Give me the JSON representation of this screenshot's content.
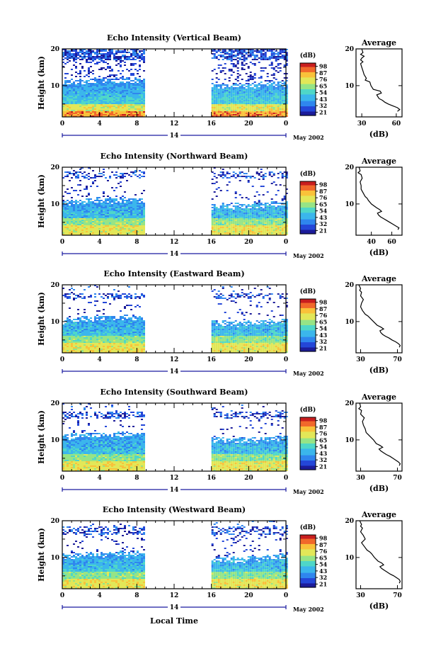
{
  "figure": {
    "xlabel": "Local Time",
    "date_label": "May 2002",
    "day_label": "14"
  },
  "colors": {
    "colormap": [
      "#1c1c9a",
      "#2447d8",
      "#2f86ee",
      "#3bb6ec",
      "#4fd7c8",
      "#96e486",
      "#e2e758",
      "#f9c23a",
      "#f1692b",
      "#c81e1e"
    ],
    "profile_line": "#000000"
  },
  "chart_data": [
    {
      "type": "heatmap",
      "title": "Echo Intensity (Vertical Beam)",
      "ylabel": "Height (km)",
      "x_ticks": [
        "0",
        "4",
        "8",
        "12",
        "16",
        "20",
        "0"
      ],
      "y_ticks": [
        "10",
        "20"
      ],
      "xlim": [
        0,
        24
      ],
      "ylim": [
        1.5,
        20
      ],
      "data_gap_hours": [
        8.7,
        16
      ],
      "colorbar": {
        "label": "(dB)",
        "ticks": [
          "98",
          "87",
          "76",
          "65",
          "54",
          "43",
          "32",
          "21"
        ]
      },
      "upper_layer_km": [
        17,
        20
      ],
      "main_top_km": 11.5,
      "average_profile": {
        "title": "Average",
        "xlabel": "(dB)",
        "x_ticks": [
          "30",
          "60"
        ],
        "xlim": [
          25,
          65
        ],
        "heights": [
          20,
          19,
          18.5,
          18,
          17.5,
          17,
          16.5,
          16,
          15,
          14,
          13,
          12,
          11.5,
          11,
          10,
          9,
          8.5,
          8,
          7.5,
          7,
          6.5,
          6,
          5.5,
          5,
          4.5,
          4,
          3.5,
          3
        ],
        "values": [
          30,
          31,
          29,
          32,
          30,
          29,
          31,
          29,
          30,
          31,
          32,
          34,
          33,
          37,
          38,
          40,
          46,
          47,
          43,
          44,
          45,
          48,
          50,
          53,
          57,
          61,
          63,
          61
        ]
      }
    },
    {
      "type": "heatmap",
      "title": "Echo Intensity (Northward Beam)",
      "ylabel": "Height (km)",
      "x_ticks": [
        "0",
        "4",
        "8",
        "12",
        "16",
        "20",
        "0"
      ],
      "y_ticks": [
        "10",
        "20"
      ],
      "xlim": [
        0,
        24
      ],
      "ylim": [
        1.5,
        20
      ],
      "data_gap_hours": [
        8.7,
        16
      ],
      "colorbar": {
        "label": "(dB)",
        "ticks": [
          "98",
          "87",
          "76",
          "65",
          "54",
          "43",
          "32",
          "21"
        ]
      },
      "upper_layer_km": [
        17,
        19
      ],
      "main_top_km": 11,
      "average_profile": {
        "title": "Average",
        "xlabel": "(dB)",
        "x_ticks": [
          "40",
          "60"
        ],
        "xlim": [
          25,
          70
        ],
        "heights": [
          20,
          19,
          18.5,
          18,
          17,
          16,
          15,
          14,
          13,
          12,
          11.5,
          11,
          10,
          9,
          8.5,
          8,
          7.5,
          7,
          6.5,
          6,
          5.5,
          5,
          4.5,
          4,
          3.5,
          3
        ],
        "values": [
          28,
          29,
          27,
          30,
          31,
          29,
          30,
          30,
          32,
          34,
          36,
          37,
          40,
          45,
          48,
          50,
          46,
          47,
          49,
          52,
          55,
          58,
          61,
          64,
          67,
          66
        ]
      }
    },
    {
      "type": "heatmap",
      "title": "Echo Intensity (Eastward Beam)",
      "ylabel": "Height (km)",
      "x_ticks": [
        "0",
        "4",
        "8",
        "12",
        "16",
        "20",
        "0"
      ],
      "y_ticks": [
        "10",
        "20"
      ],
      "xlim": [
        0,
        24
      ],
      "ylim": [
        1.5,
        20
      ],
      "data_gap_hours": [
        8.7,
        16
      ],
      "colorbar": {
        "label": "(dB)",
        "ticks": [
          "98",
          "87",
          "76",
          "65",
          "54",
          "43",
          "32",
          "21"
        ]
      },
      "upper_layer_km": [
        16.5,
        18
      ],
      "main_top_km": 11,
      "average_profile": {
        "title": "Average",
        "xlabel": "(dB)",
        "x_ticks": [
          "30",
          "70"
        ],
        "xlim": [
          25,
          75
        ],
        "heights": [
          20,
          19,
          18.5,
          18,
          17,
          16,
          15,
          14,
          13,
          12,
          11.5,
          11,
          10,
          9,
          8.5,
          8,
          7.5,
          7,
          6.5,
          6,
          5.5,
          5,
          4.5,
          4,
          3.5,
          3
        ],
        "values": [
          28,
          30,
          29,
          31,
          30,
          33,
          31,
          30,
          32,
          35,
          38,
          40,
          44,
          48,
          52,
          55,
          51,
          52,
          54,
          57,
          61,
          64,
          68,
          71,
          73,
          72
        ]
      }
    },
    {
      "type": "heatmap",
      "title": "Echo Intensity (Southward Beam)",
      "ylabel": "Height (km)",
      "x_ticks": [
        "0",
        "4",
        "8",
        "12",
        "16",
        "20",
        "0"
      ],
      "y_ticks": [
        "10",
        "20"
      ],
      "xlim": [
        0,
        24
      ],
      "ylim": [
        1.5,
        20
      ],
      "data_gap_hours": [
        8.7,
        16
      ],
      "colorbar": {
        "label": "(dB)",
        "ticks": [
          "98",
          "87",
          "76",
          "65",
          "54",
          "43",
          "32",
          "21"
        ]
      },
      "upper_layer_km": [
        16,
        18
      ],
      "main_top_km": 11.5,
      "average_profile": {
        "title": "Average",
        "xlabel": "(dB)",
        "x_ticks": [
          "30",
          "70"
        ],
        "xlim": [
          25,
          75
        ],
        "heights": [
          20,
          19,
          18.5,
          18,
          17,
          16,
          15,
          14,
          13,
          12,
          11.5,
          11,
          10,
          9,
          8.5,
          8,
          7.5,
          7,
          6.5,
          6,
          5.5,
          5,
          4.5,
          4,
          3.5,
          3
        ],
        "values": [
          29,
          30,
          28,
          31,
          30,
          34,
          32,
          33,
          35,
          36,
          38,
          40,
          44,
          47,
          51,
          54,
          50,
          52,
          55,
          58,
          62,
          65,
          68,
          71,
          73,
          72
        ]
      }
    },
    {
      "type": "heatmap",
      "title": "Echo Intensity (Westward Beam)",
      "ylabel": "Height (km)",
      "x_ticks": [
        "0",
        "4",
        "8",
        "12",
        "16",
        "20",
        "0"
      ],
      "y_ticks": [
        "10",
        "20"
      ],
      "xlim": [
        0,
        24
      ],
      "ylim": [
        1.5,
        20
      ],
      "data_gap_hours": [
        8.7,
        16
      ],
      "colorbar": {
        "label": "(dB)",
        "ticks": [
          "98",
          "87",
          "76",
          "65",
          "54",
          "43",
          "32",
          "21"
        ]
      },
      "upper_layer_km": [
        16.5,
        18.5
      ],
      "main_top_km": 11,
      "average_profile": {
        "title": "Average",
        "xlabel": "(dB)",
        "x_ticks": [
          "30",
          "70"
        ],
        "xlim": [
          25,
          75
        ],
        "heights": [
          20,
          19,
          18.5,
          18,
          17,
          16,
          15,
          14,
          13,
          12,
          11.5,
          11,
          10,
          9,
          8.5,
          8,
          7.5,
          7,
          6.5,
          6,
          5.5,
          5,
          4.5,
          4,
          3.5,
          3
        ],
        "values": [
          29,
          31,
          30,
          32,
          30,
          33,
          35,
          31,
          34,
          37,
          40,
          42,
          45,
          49,
          53,
          55,
          51,
          53,
          56,
          59,
          62,
          66,
          69,
          72,
          73,
          72
        ]
      }
    }
  ]
}
